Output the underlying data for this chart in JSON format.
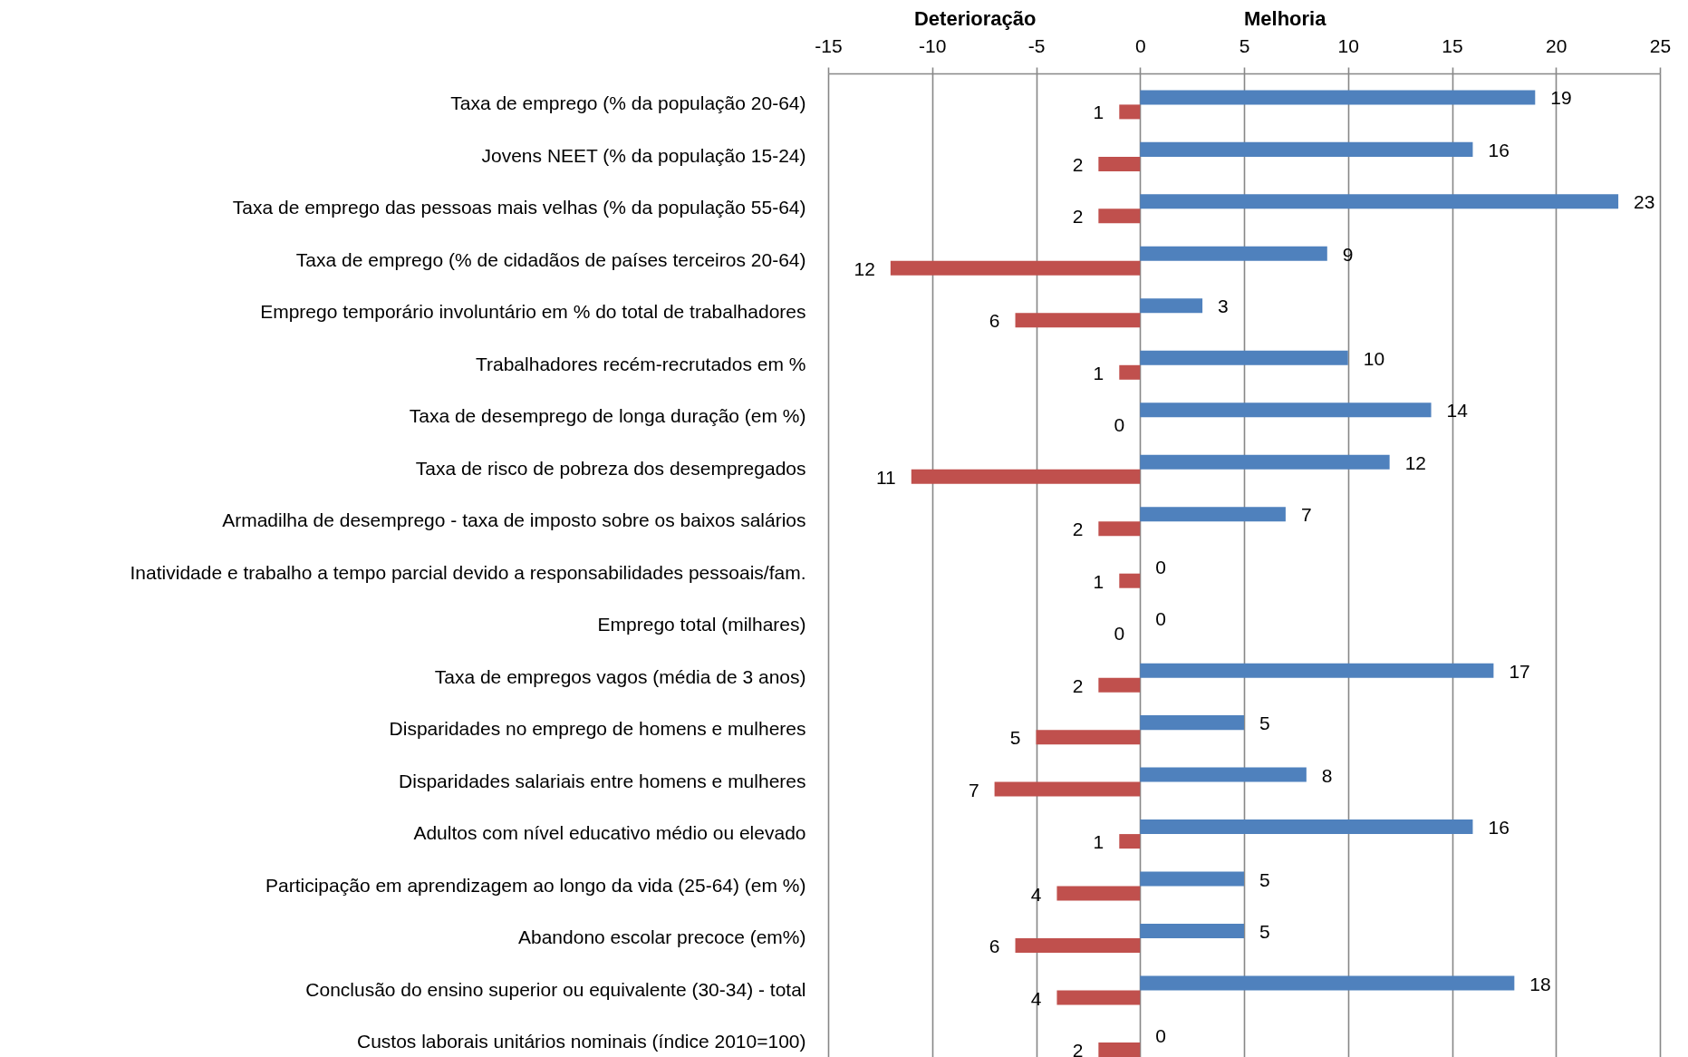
{
  "chart_data": {
    "type": "bar",
    "orientation": "horizontal",
    "categories": [
      "Taxa de emprego (% da população 20-64)",
      "Jovens NEET (% da população 15-24)",
      "Taxa de emprego das pessoas mais velhas (% da população 55-64)",
      "Taxa de emprego (% de cidadãos de países terceiros 20-64)",
      "Emprego temporário involuntário em % do total de trabalhadores",
      "Trabalhadores recém-recrutados em %",
      "Taxa de desemprego de longa duração (em %)",
      "Taxa de risco de pobreza dos desempregados",
      "Armadilha de desemprego - taxa de imposto sobre os baixos salários",
      "Inatividade e trabalho a tempo parcial devido a responsabilidades pessoais/fam.",
      "Emprego total (milhares)",
      "Taxa de empregos vagos (média de 3 anos)",
      "Disparidades no emprego de homens e mulheres",
      "Disparidades salariais entre homens e mulheres",
      "Adultos com nível educativo médio ou elevado",
      "Participação em aprendizagem ao longo da vida (25-64) (em %)",
      "Abandono escolar precoce (em%)",
      "Conclusão do ensino superior ou equivalente (30-34) - total",
      "Custos laborais unitários nominais (índice 2010=100)"
    ],
    "series": [
      {
        "color": "#4f81bd",
        "values": [
          19,
          16,
          23,
          9,
          3,
          10,
          14,
          12,
          7,
          0,
          0,
          17,
          5,
          8,
          16,
          5,
          5,
          18,
          0
        ]
      },
      {
        "color": "#c0504d",
        "values": [
          1,
          2,
          2,
          12,
          6,
          1,
          0,
          11,
          2,
          1,
          0,
          2,
          5,
          7,
          1,
          4,
          6,
          4,
          2
        ],
        "base": [
          -1,
          -2,
          -2,
          -12,
          -6,
          -1,
          null,
          -11,
          -2,
          -1,
          null,
          -2,
          -5,
          -7,
          -1,
          -4,
          -6,
          -4,
          -2
        ]
      }
    ],
    "data_labels": true,
    "xlim": [
      -15,
      25
    ],
    "xticks": [
      -15,
      -10,
      -5,
      0,
      5,
      10,
      15,
      20,
      25
    ],
    "grid": "x",
    "annotations": [
      "Deterioração",
      "Melhoria"
    ]
  }
}
